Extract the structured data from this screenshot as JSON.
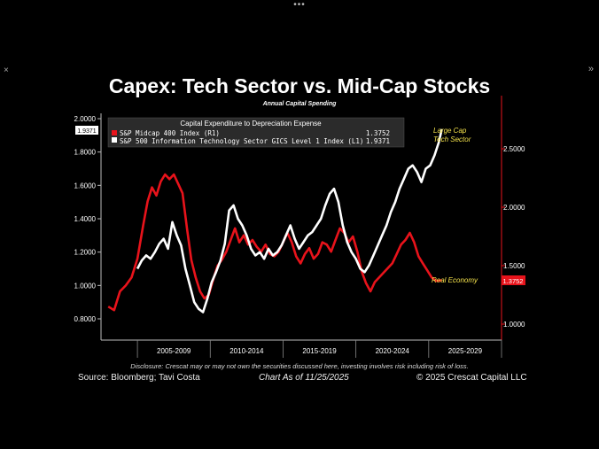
{
  "window": {
    "menu_glyph": "•••",
    "close_glyph": "×",
    "next_glyph": "»"
  },
  "header": {
    "title": "Capex: Tech Sector vs. Mid-Cap Stocks",
    "subtitle": "Annual Capital Spending"
  },
  "footer": {
    "disclosure": "Disclosure: Crescat may or may not own the securities discussed here, investing involves risk including risk of loss.",
    "source": "Source: Bloomberg; Tavi Costa",
    "chart_as_of": "Chart As of 11/25/2025",
    "copyright": "© 2025 Crescat Capital LLC"
  },
  "chart_data": {
    "type": "line",
    "title": "Capital Expenditure to Depreciation Expense",
    "categories": [
      "2005-2009",
      "2010-2014",
      "2015-2019",
      "2020-2024",
      "2025-2029"
    ],
    "left_axis": {
      "ticks": [
        "2.0000",
        "1.8000",
        "1.6000",
        "1.4000",
        "1.2000",
        "1.0000",
        "0.8000"
      ],
      "ylim": [
        0.8,
        2.0
      ]
    },
    "right_axis": {
      "ticks": [
        "2.5000",
        "2.0000",
        "1.5000",
        "1.0000"
      ],
      "ylim": [
        1.0,
        2.5
      ]
    },
    "legend_position": "top-left",
    "annotations": {
      "tech": "Large Cap\nTech Sector",
      "real": "Real Economy"
    },
    "series": [
      {
        "name": "S&P Midcap 400 Index  (R1)",
        "last_value": "1.3752",
        "axis": "right",
        "color": "#e8131b",
        "points": [
          [
            2003.0,
            1.15
          ],
          [
            2003.4,
            1.12
          ],
          [
            2003.8,
            1.28
          ],
          [
            2004.2,
            1.33
          ],
          [
            2004.6,
            1.4
          ],
          [
            2005.0,
            1.56
          ],
          [
            2005.4,
            1.85
          ],
          [
            2005.7,
            2.05
          ],
          [
            2006.0,
            2.17
          ],
          [
            2006.3,
            2.1
          ],
          [
            2006.6,
            2.22
          ],
          [
            2006.9,
            2.28
          ],
          [
            2007.2,
            2.24
          ],
          [
            2007.5,
            2.28
          ],
          [
            2007.8,
            2.2
          ],
          [
            2008.1,
            2.12
          ],
          [
            2008.4,
            1.82
          ],
          [
            2008.7,
            1.55
          ],
          [
            2009.0,
            1.4
          ],
          [
            2009.3,
            1.28
          ],
          [
            2009.6,
            1.22
          ],
          [
            2009.9,
            1.25
          ],
          [
            2010.2,
            1.38
          ],
          [
            2010.5,
            1.5
          ],
          [
            2010.8,
            1.55
          ],
          [
            2011.1,
            1.62
          ],
          [
            2011.4,
            1.72
          ],
          [
            2011.7,
            1.82
          ],
          [
            2012.0,
            1.7
          ],
          [
            2012.3,
            1.76
          ],
          [
            2012.6,
            1.68
          ],
          [
            2012.9,
            1.72
          ],
          [
            2013.2,
            1.66
          ],
          [
            2013.5,
            1.62
          ],
          [
            2013.8,
            1.68
          ],
          [
            2014.1,
            1.6
          ],
          [
            2014.4,
            1.58
          ],
          [
            2014.7,
            1.62
          ],
          [
            2015.0,
            1.7
          ],
          [
            2015.3,
            1.78
          ],
          [
            2015.6,
            1.7
          ],
          [
            2015.9,
            1.58
          ],
          [
            2016.2,
            1.52
          ],
          [
            2016.5,
            1.6
          ],
          [
            2016.8,
            1.65
          ],
          [
            2017.1,
            1.56
          ],
          [
            2017.4,
            1.6
          ],
          [
            2017.7,
            1.7
          ],
          [
            2018.0,
            1.68
          ],
          [
            2018.3,
            1.62
          ],
          [
            2018.6,
            1.72
          ],
          [
            2018.9,
            1.82
          ],
          [
            2019.2,
            1.78
          ],
          [
            2019.5,
            1.7
          ],
          [
            2019.8,
            1.75
          ],
          [
            2020.1,
            1.62
          ],
          [
            2020.4,
            1.45
          ],
          [
            2020.7,
            1.35
          ],
          [
            2021.0,
            1.28
          ],
          [
            2021.3,
            1.36
          ],
          [
            2021.6,
            1.4
          ],
          [
            2021.9,
            1.44
          ],
          [
            2022.2,
            1.48
          ],
          [
            2022.5,
            1.52
          ],
          [
            2022.8,
            1.6
          ],
          [
            2023.1,
            1.68
          ],
          [
            2023.4,
            1.72
          ],
          [
            2023.7,
            1.78
          ],
          [
            2024.0,
            1.7
          ],
          [
            2024.3,
            1.58
          ],
          [
            2024.6,
            1.52
          ],
          [
            2024.9,
            1.46
          ],
          [
            2025.2,
            1.4
          ],
          [
            2025.5,
            1.37
          ],
          [
            2025.9,
            1.3752
          ]
        ]
      },
      {
        "name": "S&P 500 Information Technology Sector GICS Level 1 Index  (L1)",
        "last_value": "1.9371",
        "axis": "left",
        "color": "#ffffff",
        "points": [
          [
            2005.0,
            1.1
          ],
          [
            2005.3,
            1.15
          ],
          [
            2005.6,
            1.18
          ],
          [
            2005.9,
            1.16
          ],
          [
            2006.2,
            1.2
          ],
          [
            2006.5,
            1.25
          ],
          [
            2006.8,
            1.28
          ],
          [
            2007.1,
            1.22
          ],
          [
            2007.4,
            1.38
          ],
          [
            2007.7,
            1.3
          ],
          [
            2008.0,
            1.24
          ],
          [
            2008.3,
            1.1
          ],
          [
            2008.6,
            1.0
          ],
          [
            2008.9,
            0.9
          ],
          [
            2009.2,
            0.86
          ],
          [
            2009.5,
            0.84
          ],
          [
            2009.8,
            0.92
          ],
          [
            2010.1,
            1.02
          ],
          [
            2010.4,
            1.08
          ],
          [
            2010.7,
            1.15
          ],
          [
            2011.0,
            1.25
          ],
          [
            2011.3,
            1.45
          ],
          [
            2011.6,
            1.48
          ],
          [
            2011.9,
            1.4
          ],
          [
            2012.2,
            1.36
          ],
          [
            2012.5,
            1.3
          ],
          [
            2012.8,
            1.22
          ],
          [
            2013.1,
            1.18
          ],
          [
            2013.4,
            1.2
          ],
          [
            2013.7,
            1.16
          ],
          [
            2014.0,
            1.22
          ],
          [
            2014.3,
            1.18
          ],
          [
            2014.6,
            1.2
          ],
          [
            2014.9,
            1.24
          ],
          [
            2015.2,
            1.3
          ],
          [
            2015.5,
            1.36
          ],
          [
            2015.8,
            1.28
          ],
          [
            2016.1,
            1.22
          ],
          [
            2016.4,
            1.26
          ],
          [
            2016.7,
            1.3
          ],
          [
            2017.0,
            1.32
          ],
          [
            2017.3,
            1.36
          ],
          [
            2017.6,
            1.4
          ],
          [
            2017.9,
            1.48
          ],
          [
            2018.2,
            1.55
          ],
          [
            2018.5,
            1.58
          ],
          [
            2018.8,
            1.5
          ],
          [
            2019.1,
            1.36
          ],
          [
            2019.4,
            1.26
          ],
          [
            2019.7,
            1.2
          ],
          [
            2020.0,
            1.16
          ],
          [
            2020.3,
            1.1
          ],
          [
            2020.6,
            1.08
          ],
          [
            2020.9,
            1.12
          ],
          [
            2021.2,
            1.18
          ],
          [
            2021.5,
            1.24
          ],
          [
            2021.8,
            1.3
          ],
          [
            2022.1,
            1.36
          ],
          [
            2022.4,
            1.44
          ],
          [
            2022.7,
            1.5
          ],
          [
            2023.0,
            1.58
          ],
          [
            2023.3,
            1.64
          ],
          [
            2023.6,
            1.7
          ],
          [
            2023.9,
            1.72
          ],
          [
            2024.2,
            1.68
          ],
          [
            2024.5,
            1.62
          ],
          [
            2024.8,
            1.7
          ],
          [
            2025.1,
            1.72
          ],
          [
            2025.4,
            1.78
          ],
          [
            2025.7,
            1.86
          ],
          [
            2025.9,
            1.9371
          ]
        ]
      }
    ]
  }
}
